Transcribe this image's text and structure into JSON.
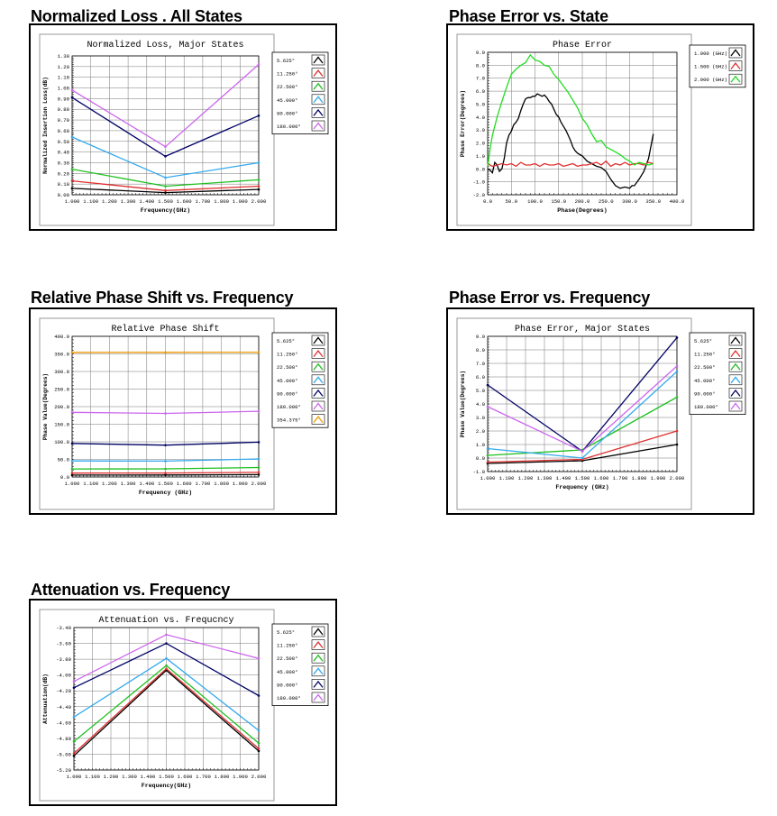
{
  "sections": [
    {
      "title": "Normalized Loss . All States"
    },
    {
      "title": "Phase Error vs. State"
    },
    {
      "title": "Relative Phase Shift vs. Frequency"
    },
    {
      "title": "Phase Error vs. Frequency"
    },
    {
      "title": "Attenuation vs. Frequency"
    }
  ],
  "chart_data": [
    {
      "type": "line",
      "title": "Normalized Loss, Major States",
      "xlabel": "Frequency(GHz)",
      "ylabel": "Normalized Insertion Loss(dB)",
      "xlim": [
        1.0,
        2.0
      ],
      "ylim": [
        0.0,
        1.3
      ],
      "xticks": [
        "1.000",
        "1.100",
        "1.200",
        "1.300",
        "1.400",
        "1.500",
        "1.600",
        "1.700",
        "1.800",
        "1.900",
        "2.000"
      ],
      "yticks": [
        "0.00",
        "0.10",
        "0.20",
        "0.30",
        "0.40",
        "0.50",
        "0.60",
        "0.70",
        "0.80",
        "0.90",
        "1.00",
        "1.10",
        "1.20",
        "1.30"
      ],
      "grid": true,
      "legend_position": "right",
      "x": [
        1.0,
        1.5,
        2.0
      ],
      "series": [
        {
          "name": "5.625°",
          "color": "#000000",
          "values": [
            0.06,
            0.02,
            0.05
          ]
        },
        {
          "name": "11.250°",
          "color": "#e03030",
          "values": [
            0.13,
            0.04,
            0.08
          ]
        },
        {
          "name": "22.500°",
          "color": "#20c020",
          "values": [
            0.24,
            0.08,
            0.14
          ]
        },
        {
          "name": "45.000°",
          "color": "#33aaee",
          "values": [
            0.54,
            0.16,
            0.3
          ]
        },
        {
          "name": "90.000°",
          "color": "#000066",
          "values": [
            0.91,
            0.36,
            0.74
          ]
        },
        {
          "name": "180.000°",
          "color": "#cc66ee",
          "values": [
            0.98,
            0.45,
            1.22
          ]
        }
      ]
    },
    {
      "type": "line",
      "title": "Phase Error",
      "xlabel": "Phase(Degrees)",
      "ylabel": "Phase Error(Degrees)",
      "xlim": [
        0,
        400
      ],
      "ylim": [
        -2.0,
        9.0
      ],
      "xticks": [
        "0.0",
        "50.0",
        "100.0",
        "150.0",
        "200.0",
        "250.0",
        "300.0",
        "350.0",
        "400.0"
      ],
      "yticks": [
        "-2.0",
        "-1.0",
        "0.0",
        "1.0",
        "2.0",
        "3.0",
        "4.0",
        "5.0",
        "6.0",
        "7.0",
        "8.0",
        "9.0"
      ],
      "grid": true,
      "legend_position": "right",
      "series": [
        {
          "name": "1.000 (GHz)",
          "color": "#000000",
          "x": [
            0,
            5,
            10,
            15,
            20,
            25,
            30,
            35,
            40,
            45,
            50,
            55,
            60,
            65,
            70,
            75,
            80,
            85,
            90,
            95,
            100,
            105,
            110,
            115,
            120,
            125,
            130,
            135,
            140,
            145,
            150,
            155,
            160,
            165,
            170,
            175,
            180,
            185,
            190,
            195,
            200,
            210,
            220,
            230,
            240,
            250,
            260,
            270,
            280,
            290,
            300,
            305,
            310,
            320,
            330,
            340,
            350
          ],
          "values": [
            0.0,
            -0.1,
            -0.3,
            0.5,
            0.3,
            -0.2,
            0.0,
            0.8,
            2.0,
            2.6,
            2.9,
            3.4,
            3.6,
            3.9,
            4.5,
            5.0,
            5.4,
            5.5,
            5.5,
            5.6,
            5.6,
            5.8,
            5.7,
            5.6,
            5.7,
            5.5,
            5.2,
            5.0,
            4.6,
            4.2,
            4.0,
            3.6,
            3.3,
            3.0,
            2.6,
            2.2,
            1.7,
            1.4,
            1.2,
            1.1,
            1.0,
            0.6,
            0.4,
            0.2,
            0.1,
            -0.2,
            -0.8,
            -1.3,
            -1.5,
            -1.4,
            -1.5,
            -1.3,
            -1.3,
            -0.8,
            -0.2,
            0.8,
            2.7
          ]
        },
        {
          "name": "1.500 (GHz)",
          "color": "#e03030",
          "x": [
            0,
            10,
            20,
            30,
            40,
            50,
            60,
            70,
            80,
            90,
            100,
            110,
            120,
            130,
            140,
            150,
            160,
            170,
            180,
            190,
            200,
            210,
            220,
            230,
            240,
            250,
            260,
            270,
            280,
            290,
            300,
            310,
            320,
            330,
            340,
            350
          ],
          "values": [
            0.4,
            0.2,
            0.3,
            0.4,
            0.3,
            0.4,
            0.2,
            0.5,
            0.3,
            0.3,
            0.4,
            0.2,
            0.4,
            0.3,
            0.3,
            0.4,
            0.2,
            0.3,
            0.4,
            0.2,
            0.3,
            0.3,
            0.4,
            0.5,
            0.3,
            0.6,
            0.2,
            0.4,
            0.3,
            0.5,
            0.3,
            0.4,
            0.4,
            0.3,
            0.5,
            0.4
          ]
        },
        {
          "name": "2.000 (GHz)",
          "color": "#20dd20",
          "x": [
            0,
            5,
            10,
            20,
            30,
            40,
            50,
            60,
            70,
            80,
            90,
            100,
            110,
            120,
            130,
            140,
            150,
            160,
            170,
            180,
            190,
            200,
            210,
            220,
            230,
            240,
            250,
            260,
            270,
            280,
            290,
            300,
            310,
            320,
            330,
            340,
            350
          ],
          "values": [
            0.2,
            1.5,
            2.6,
            4.0,
            5.2,
            6.3,
            7.3,
            7.7,
            8.0,
            8.2,
            8.8,
            8.4,
            8.3,
            8.0,
            7.9,
            7.3,
            6.9,
            6.4,
            5.9,
            5.3,
            4.7,
            3.9,
            3.4,
            2.7,
            2.1,
            2.2,
            1.7,
            1.5,
            1.3,
            1.1,
            0.8,
            0.6,
            0.3,
            0.5,
            0.4,
            0.3,
            0.4
          ]
        }
      ]
    },
    {
      "type": "line",
      "title": "Relative Phase Shift",
      "xlabel": "Frequency (GHz)",
      "ylabel": "Phase Value(Degrees)",
      "xlim": [
        1.0,
        2.0
      ],
      "ylim": [
        0.0,
        400.0
      ],
      "xticks": [
        "1.000",
        "1.100",
        "1.200",
        "1.300",
        "1.400",
        "1.500",
        "1.600",
        "1.700",
        "1.800",
        "1.900",
        "2.000"
      ],
      "yticks": [
        "0.0",
        "50.0",
        "100.0",
        "150.0",
        "200.0",
        "250.0",
        "300.0",
        "350.0",
        "400.0"
      ],
      "grid": true,
      "legend_position": "right",
      "x": [
        1.0,
        1.5,
        2.0
      ],
      "series": [
        {
          "name": "5.625°",
          "color": "#000000",
          "values": [
            5.5,
            5.7,
            6.6
          ]
        },
        {
          "name": "11.250°",
          "color": "#e03030",
          "values": [
            11.0,
            11.3,
            13.2
          ]
        },
        {
          "name": "22.500°",
          "color": "#20c020",
          "values": [
            22.7,
            23.0,
            26.9
          ]
        },
        {
          "name": "45.000°",
          "color": "#33aaee",
          "values": [
            45.7,
            45.0,
            51.3
          ]
        },
        {
          "name": "90.000°",
          "color": "#000066",
          "values": [
            95.4,
            90.6,
            98.9
          ]
        },
        {
          "name": "180.000°",
          "color": "#cc66ee",
          "values": [
            183.8,
            180.7,
            186.8
          ]
        },
        {
          "name": "354.375°",
          "color": "#ee9900",
          "values": [
            354.3,
            354.5,
            355.0
          ]
        }
      ]
    },
    {
      "type": "line",
      "title": "Phase Error, Major States",
      "xlabel": "Frequency (GHz)",
      "ylabel": "Phase Value(Degrees)",
      "xlim": [
        1.0,
        2.0
      ],
      "ylim": [
        -1.0,
        9.0
      ],
      "xticks": [
        "1.000",
        "1.100",
        "1.200",
        "1.300",
        "1.400",
        "1.500",
        "1.600",
        "1.700",
        "1.800",
        "1.900",
        "2.000"
      ],
      "yticks": [
        "-1.0",
        "0.0",
        "1.0",
        "2.0",
        "3.0",
        "4.0",
        "5.0",
        "6.0",
        "7.0",
        "8.0",
        "9.0"
      ],
      "grid": true,
      "legend_position": "right",
      "x": [
        1.0,
        1.5,
        2.0
      ],
      "series": [
        {
          "name": "5.625°",
          "color": "#000000",
          "values": [
            -0.4,
            -0.2,
            1.0
          ]
        },
        {
          "name": "11.250°",
          "color": "#e03030",
          "values": [
            -0.3,
            -0.1,
            2.0
          ]
        },
        {
          "name": "22.500°",
          "color": "#20c020",
          "values": [
            0.2,
            0.6,
            4.5
          ]
        },
        {
          "name": "45.000°",
          "color": "#33aaee",
          "values": [
            0.7,
            0.0,
            6.4
          ]
        },
        {
          "name": "90.000°",
          "color": "#000066",
          "values": [
            5.4,
            0.5,
            8.9
          ]
        },
        {
          "name": "180.000°",
          "color": "#cc66ee",
          "values": [
            3.8,
            0.5,
            6.8
          ]
        }
      ]
    },
    {
      "type": "line",
      "title": "Attenuation vs. Frequcncy",
      "xlabel": "Frequency(GHz)",
      "ylabel": "Attenuation(dB)",
      "xlim": [
        1.0,
        2.0
      ],
      "ylim": [
        -5.2,
        -3.4
      ],
      "xticks": [
        "1.000",
        "1.100",
        "1.200",
        "1.300",
        "1.400",
        "1.500",
        "1.600",
        "1.700",
        "1.800",
        "1.900",
        "2.000"
      ],
      "yticks": [
        "-5.20",
        "-5.00",
        "-4.80",
        "-4.60",
        "-4.40",
        "-4.20",
        "-4.00",
        "-3.80",
        "-3.60",
        "-3.40"
      ],
      "grid": true,
      "legend_position": "right",
      "x": [
        1.0,
        1.5,
        2.0
      ],
      "series": [
        {
          "name": "5.625°",
          "color": "#000000",
          "values": [
            -5.02,
            -3.94,
            -4.96
          ]
        },
        {
          "name": "11.250°",
          "color": "#e03030",
          "values": [
            -4.99,
            -3.92,
            -4.93
          ]
        },
        {
          "name": "22.500°",
          "color": "#20c020",
          "values": [
            -4.84,
            -3.88,
            -4.86
          ]
        },
        {
          "name": "45.000°",
          "color": "#33aaee",
          "values": [
            -4.53,
            -3.79,
            -4.7
          ]
        },
        {
          "name": "90.000°",
          "color": "#000066",
          "values": [
            -4.16,
            -3.6,
            -4.26
          ]
        },
        {
          "name": "180.000°",
          "color": "#cc66ee",
          "values": [
            -4.08,
            -3.49,
            -3.79
          ]
        }
      ]
    }
  ]
}
